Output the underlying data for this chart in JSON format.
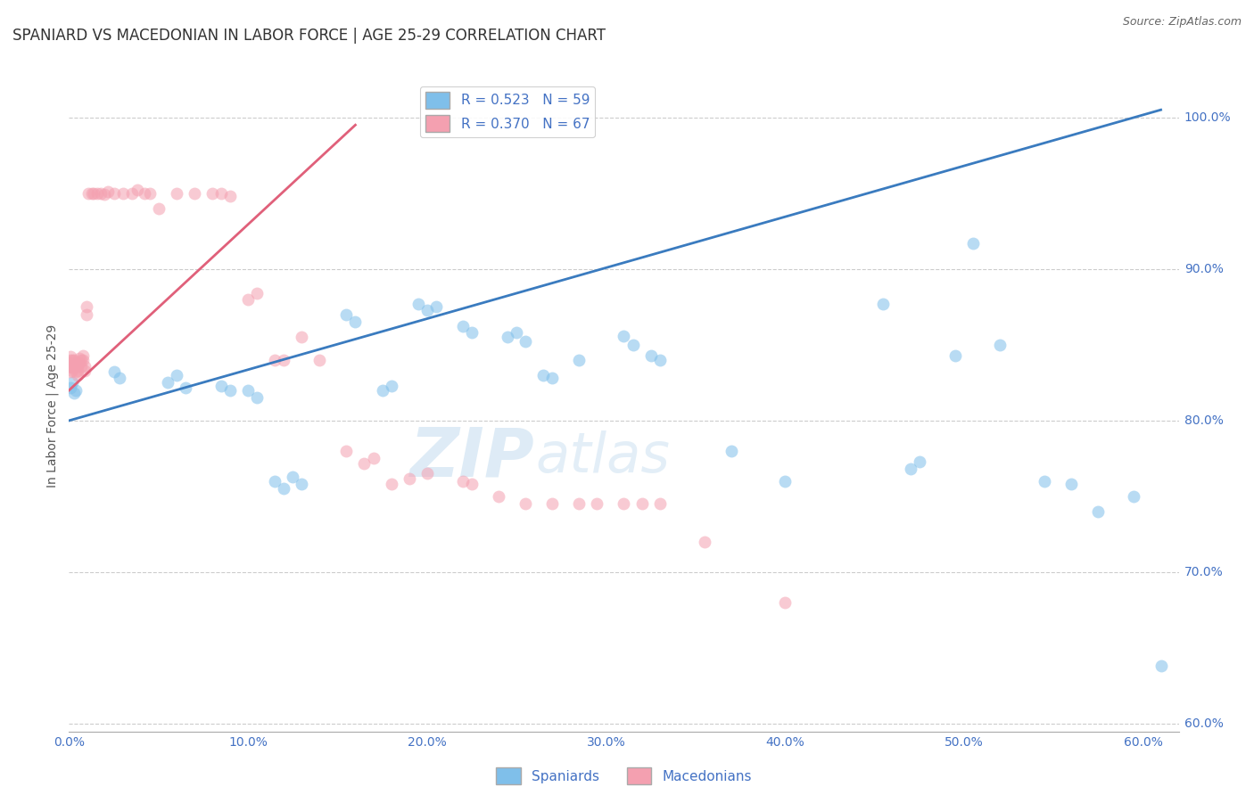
{
  "title": "SPANIARD VS MACEDONIAN IN LABOR FORCE | AGE 25-29 CORRELATION CHART",
  "source_text": "Source: ZipAtlas.com",
  "ylabel": "In Labor Force | Age 25-29",
  "xlim": [
    0.0,
    0.62
  ],
  "ylim": [
    0.595,
    1.025
  ],
  "xticks": [
    0.0,
    0.1,
    0.2,
    0.3,
    0.4,
    0.5,
    0.6
  ],
  "yticks": [
    0.6,
    0.7,
    0.8,
    0.9,
    1.0
  ],
  "ytick_labels": [
    "60.0%",
    "70.0%",
    "80.0%",
    "90.0%",
    "100.0%"
  ],
  "xtick_labels": [
    "0.0%",
    "10.0%",
    "20.0%",
    "30.0%",
    "40.0%",
    "50.0%",
    "60.0%"
  ],
  "blue_color": "#7fbfea",
  "pink_color": "#f4a0b0",
  "blue_line_color": "#3a7bbf",
  "pink_line_color": "#e0607a",
  "watermark_zip": "ZIP",
  "watermark_atlas": "atlas",
  "blue_scatter_x": [
    0.001,
    0.002,
    0.003,
    0.004,
    0.025,
    0.028,
    0.055,
    0.06,
    0.065,
    0.085,
    0.09,
    0.1,
    0.105,
    0.115,
    0.12,
    0.125,
    0.13,
    0.155,
    0.16,
    0.175,
    0.18,
    0.195,
    0.2,
    0.205,
    0.22,
    0.225,
    0.245,
    0.25,
    0.255,
    0.265,
    0.27,
    0.285,
    0.31,
    0.315,
    0.325,
    0.33,
    0.37,
    0.4,
    0.455,
    0.47,
    0.475,
    0.495,
    0.505,
    0.52,
    0.545,
    0.56,
    0.575,
    0.595,
    0.61
  ],
  "blue_scatter_y": [
    0.822,
    0.825,
    0.818,
    0.82,
    0.832,
    0.828,
    0.825,
    0.83,
    0.822,
    0.823,
    0.82,
    0.82,
    0.815,
    0.76,
    0.755,
    0.763,
    0.758,
    0.87,
    0.865,
    0.82,
    0.823,
    0.877,
    0.873,
    0.875,
    0.862,
    0.858,
    0.855,
    0.858,
    0.852,
    0.83,
    0.828,
    0.84,
    0.856,
    0.85,
    0.843,
    0.84,
    0.78,
    0.76,
    0.877,
    0.768,
    0.773,
    0.843,
    0.917,
    0.85,
    0.76,
    0.758,
    0.74,
    0.75,
    0.638
  ],
  "pink_scatter_x": [
    0.001,
    0.001,
    0.001,
    0.001,
    0.001,
    0.001,
    0.002,
    0.002,
    0.002,
    0.003,
    0.003,
    0.004,
    0.004,
    0.005,
    0.005,
    0.005,
    0.006,
    0.006,
    0.007,
    0.007,
    0.008,
    0.008,
    0.009,
    0.009,
    0.01,
    0.01,
    0.011,
    0.013,
    0.014,
    0.016,
    0.018,
    0.02,
    0.022,
    0.025,
    0.03,
    0.035,
    0.038,
    0.042,
    0.045,
    0.05,
    0.06,
    0.07,
    0.08,
    0.085,
    0.09,
    0.1,
    0.105,
    0.115,
    0.12,
    0.13,
    0.14,
    0.155,
    0.165,
    0.17,
    0.18,
    0.19,
    0.2,
    0.22,
    0.225,
    0.24,
    0.255,
    0.27,
    0.285,
    0.295,
    0.31,
    0.32,
    0.33,
    0.355,
    0.4
  ],
  "pink_scatter_y": [
    0.832,
    0.835,
    0.836,
    0.838,
    0.84,
    0.842,
    0.833,
    0.836,
    0.84,
    0.835,
    0.84,
    0.832,
    0.836,
    0.83,
    0.833,
    0.836,
    0.838,
    0.841,
    0.836,
    0.84,
    0.84,
    0.843,
    0.833,
    0.836,
    0.87,
    0.875,
    0.95,
    0.95,
    0.95,
    0.95,
    0.95,
    0.949,
    0.951,
    0.95,
    0.95,
    0.95,
    0.952,
    0.95,
    0.95,
    0.94,
    0.95,
    0.95,
    0.95,
    0.95,
    0.948,
    0.88,
    0.884,
    0.84,
    0.84,
    0.855,
    0.84,
    0.78,
    0.772,
    0.775,
    0.758,
    0.762,
    0.765,
    0.76,
    0.758,
    0.75,
    0.745,
    0.745,
    0.745,
    0.745,
    0.745,
    0.745,
    0.745,
    0.72,
    0.68
  ],
  "blue_trend_x": [
    0.0,
    0.61
  ],
  "blue_trend_y": [
    0.8,
    1.005
  ],
  "pink_trend_x": [
    0.0,
    0.16
  ],
  "pink_trend_y": [
    0.82,
    0.995
  ]
}
